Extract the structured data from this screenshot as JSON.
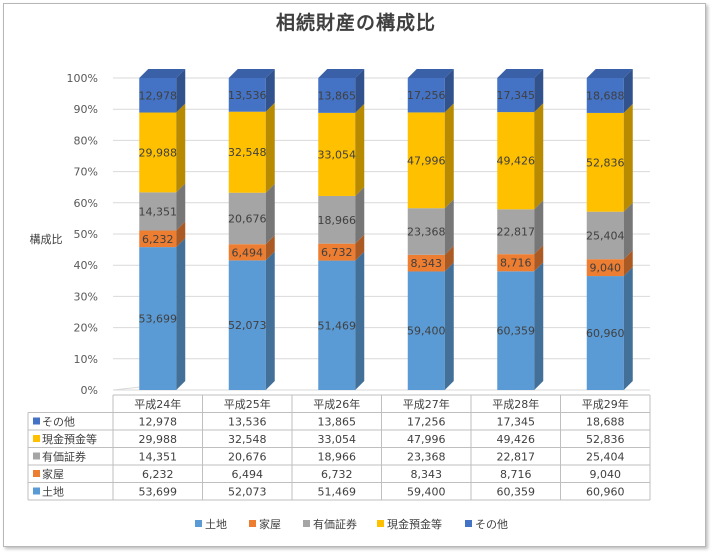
{
  "chart_data": {
    "type": "bar",
    "stacked": "percent",
    "title": "相続財産の構成比",
    "ylabel": "構成比",
    "xlabel": "",
    "ylim": [
      0,
      100
    ],
    "y_ticks": [
      "0%",
      "10%",
      "20%",
      "30%",
      "40%",
      "50%",
      "60%",
      "70%",
      "80%",
      "90%",
      "100%"
    ],
    "categories": [
      "平成24年",
      "平成25年",
      "平成26年",
      "平成27年",
      "平成28年",
      "平成29年"
    ],
    "series": [
      {
        "name": "土地",
        "color": "#5b9bd5",
        "values": [
          53699,
          52073,
          51469,
          59400,
          60359,
          60960
        ],
        "labels": [
          "53,699",
          "52,073",
          "51,469",
          "59,400",
          "60,359",
          "60,960"
        ]
      },
      {
        "name": "家屋",
        "color": "#ed7d31",
        "values": [
          6232,
          6494,
          6732,
          8343,
          8716,
          9040
        ],
        "labels": [
          "6,232",
          "6,494",
          "6,732",
          "8,343",
          "8,716",
          "9,040"
        ]
      },
      {
        "name": "有価証券",
        "color": "#a5a5a5",
        "values": [
          14351,
          20676,
          18966,
          23368,
          22817,
          25404
        ],
        "labels": [
          "14,351",
          "20,676",
          "18,966",
          "23,368",
          "22,817",
          "25,404"
        ]
      },
      {
        "name": "現金預金等",
        "color": "#ffc000",
        "values": [
          29988,
          32548,
          33054,
          47996,
          49426,
          52836
        ],
        "labels": [
          "29,988",
          "32,548",
          "33,054",
          "47,996",
          "49,426",
          "52,836"
        ]
      },
      {
        "name": "その他",
        "color": "#4472c4",
        "values": [
          12978,
          13536,
          13865,
          17256,
          17345,
          18688
        ],
        "labels": [
          "12,978",
          "13,536",
          "13,865",
          "17,256",
          "17,345",
          "18,688"
        ]
      }
    ],
    "legend": "bottom",
    "data_table": true,
    "bar_style": "3d"
  }
}
